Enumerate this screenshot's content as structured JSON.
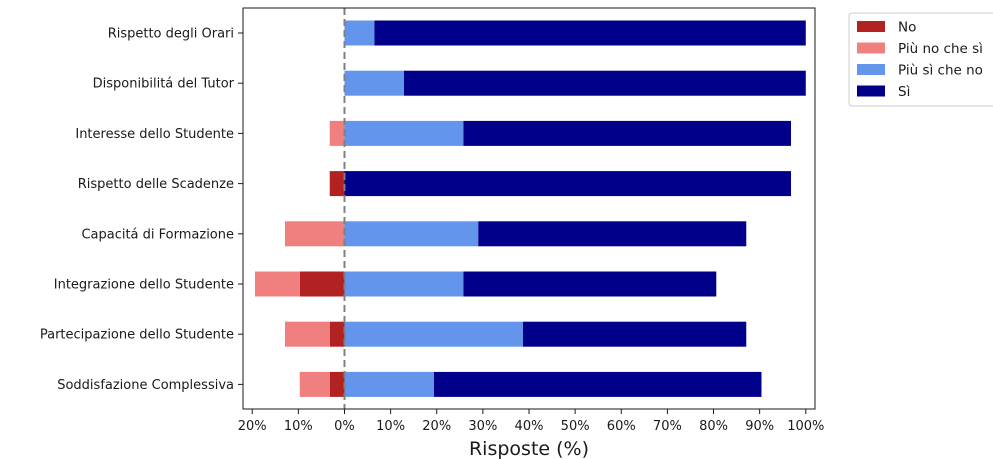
{
  "chart_data": {
    "type": "bar",
    "orientation": "horizontal",
    "stacked": "diverging",
    "categories": [
      "Rispetto degli Orari",
      "Disponibilitá del Tutor",
      "Interesse dello Studente",
      "Rispetto delle Scadenze",
      "Capacitá di Formazione",
      "Integrazione dello Studente",
      "Partecipazione dello Studente",
      "Soddisfazione Complessiva"
    ],
    "series": [
      {
        "name": "No",
        "color": "#b22222",
        "side": "negative",
        "values": [
          0,
          0,
          0,
          3.2,
          0,
          9.7,
          3.2,
          3.2
        ]
      },
      {
        "name": "Più no che sì",
        "color": "#f08080",
        "side": "negative",
        "values": [
          0,
          0,
          3.2,
          0,
          12.9,
          9.7,
          9.7,
          6.5
        ]
      },
      {
        "name": "Più sì che no",
        "color": "#6495ed",
        "side": "positive",
        "values": [
          6.5,
          12.9,
          25.8,
          0,
          29.0,
          25.8,
          38.7,
          19.4
        ]
      },
      {
        "name": "Sì",
        "color": "#00008b",
        "side": "positive",
        "values": [
          93.5,
          87.1,
          71.0,
          96.8,
          58.1,
          54.8,
          48.4,
          71.0
        ]
      }
    ],
    "xlabel": "Risposte (%)",
    "ylabel": "",
    "xlim": [
      -22,
      102
    ],
    "xticks": [
      -20,
      -10,
      0,
      10,
      20,
      30,
      40,
      50,
      60,
      70,
      80,
      90,
      100
    ],
    "xtick_labels": [
      "20%",
      "10%",
      "0%",
      "10%",
      "20%",
      "30%",
      "40%",
      "50%",
      "60%",
      "70%",
      "80%",
      "90%",
      "100%"
    ],
    "zero_line": {
      "style": "dashed",
      "color": "#808080"
    },
    "grid": false,
    "legend": {
      "placement": "outside-top-right",
      "entries": [
        "No",
        "Più no che sì",
        "Più sì che no",
        "Sì"
      ]
    }
  }
}
